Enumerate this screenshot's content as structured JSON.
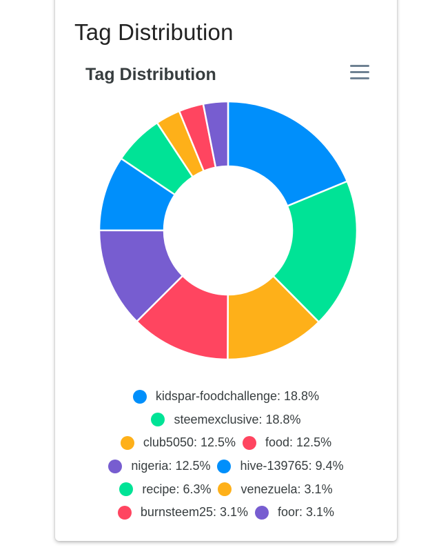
{
  "card": {
    "title": "Tag Distribution"
  },
  "toolbar": {
    "menu_icon": "hamburger-menu-icon"
  },
  "chart_data": {
    "type": "donut",
    "title": "Tag Distribution",
    "legend_position": "bottom",
    "series": [
      {
        "label": "kidspar-foodchallenge",
        "value": 18.8,
        "display": "kidspar-foodchallenge: 18.8%",
        "color": "#008ffb"
      },
      {
        "label": "steemexclusive",
        "value": 18.8,
        "display": "steemexclusive: 18.8%",
        "color": "#00e396"
      },
      {
        "label": "club5050",
        "value": 12.5,
        "display": "club5050: 12.5%",
        "color": "#feb019"
      },
      {
        "label": "food",
        "value": 12.5,
        "display": "food: 12.5%",
        "color": "#ff4560"
      },
      {
        "label": "nigeria",
        "value": 12.5,
        "display": "nigeria: 12.5%",
        "color": "#775dd0"
      },
      {
        "label": "hive-139765",
        "value": 9.4,
        "display": "hive-139765: 9.4%",
        "color": "#008ffb"
      },
      {
        "label": "recipe",
        "value": 6.3,
        "display": "recipe: 6.3%",
        "color": "#00e396"
      },
      {
        "label": "venezuela",
        "value": 3.1,
        "display": "venezuela: 3.1%",
        "color": "#feb019"
      },
      {
        "label": "burnsteem25",
        "value": 3.1,
        "display": "burnsteem25: 3.1%",
        "color": "#ff4560"
      },
      {
        "label": "foor",
        "value": 3.1,
        "display": "foor: 3.1%",
        "color": "#775dd0"
      }
    ]
  }
}
